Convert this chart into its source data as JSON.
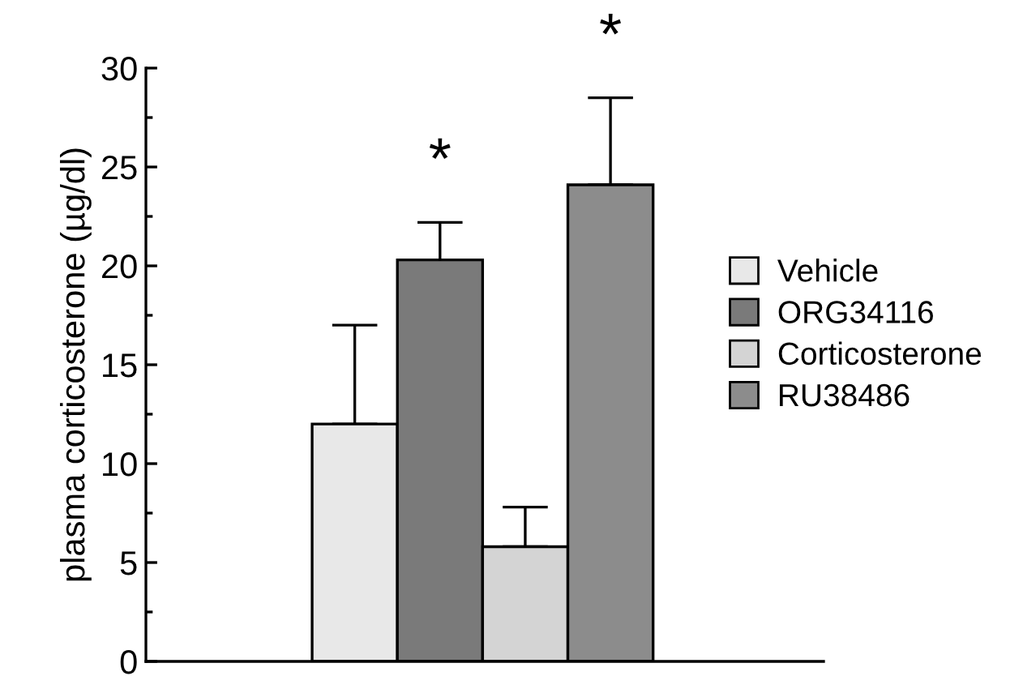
{
  "chart_data": {
    "type": "bar",
    "ylabel": "plasma corticosterone (µg/dl)",
    "categories": [
      null
    ],
    "series": [
      {
        "name": "Vehicle",
        "color": "#e8e8e8",
        "values": [
          12
        ],
        "errors": [
          [
            12,
            17
          ]
        ]
      },
      {
        "name": "ORG34116",
        "color": "#7a7a7a",
        "values": [
          20.3
        ],
        "errors": [
          [
            20.3,
            22.2
          ]
        ],
        "value_labels": [
          "*"
        ]
      },
      {
        "name": "Corticosterone",
        "color": "#d4d4d4",
        "values": [
          5.8
        ],
        "errors": [
          [
            5.8,
            7.8
          ]
        ]
      },
      {
        "name": "RU38486",
        "color": "#8c8c8c",
        "values": [
          24.1
        ],
        "errors": [
          [
            24.1,
            28.5
          ]
        ],
        "value_labels": [
          "*"
        ]
      }
    ],
    "ylim": [
      0,
      30
    ],
    "yticks": [
      0,
      {
        "value": 2.5,
        "label": null
      },
      5,
      {
        "value": 7.5,
        "label": null
      },
      10,
      {
        "value": 12.5,
        "label": null
      },
      15,
      {
        "value": 17.5,
        "label": null
      },
      20,
      {
        "value": 22.5,
        "label": null
      },
      25,
      {
        "value": 27.5,
        "label": null
      },
      30
    ],
    "grid": false,
    "legend": "right"
  }
}
